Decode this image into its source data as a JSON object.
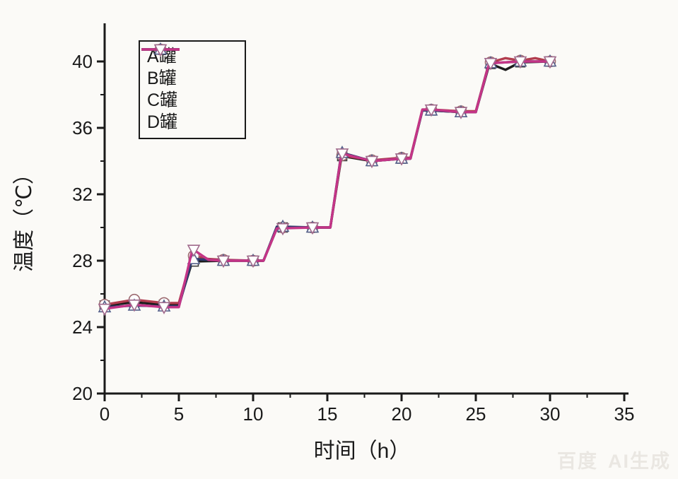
{
  "watermark": {
    "brand": "百度",
    "label": "AI生成"
  },
  "chart_data": {
    "type": "line",
    "title": "",
    "xlabel": "时间（h）",
    "ylabel": "温度（℃）",
    "xlim": [
      0,
      35.3
    ],
    "ylim": [
      20,
      42.3
    ],
    "x_ticks": [
      0,
      5,
      10,
      15,
      20,
      25,
      30,
      35
    ],
    "x_minor_ticks": [
      2.5,
      7.5,
      12.5,
      17.5,
      22.5,
      27.5,
      32.5
    ],
    "y_ticks": [
      20,
      24,
      28,
      32,
      36,
      40
    ],
    "y_minor_ticks": [
      22,
      26,
      30,
      34,
      38
    ],
    "grid": "off",
    "legend_position": "top-left",
    "axis_color": "#1a1a1a",
    "series": [
      {
        "name": "A罐",
        "color": "#1c1c1c",
        "marker": "square",
        "marker_stroke": "#3a3a3a",
        "line": [
          [
            0,
            25.3
          ],
          [
            2,
            25.5
          ],
          [
            4,
            25.35
          ],
          [
            5,
            25.35
          ],
          [
            5.9,
            27.95
          ],
          [
            8,
            28.0
          ],
          [
            10,
            28.0
          ],
          [
            10.7,
            28.0
          ],
          [
            11.6,
            29.95
          ],
          [
            12,
            30.0
          ],
          [
            14,
            30.0
          ],
          [
            15.2,
            30.0
          ],
          [
            15.95,
            34.25
          ],
          [
            16,
            34.3
          ],
          [
            18,
            34.0
          ],
          [
            20,
            34.15
          ],
          [
            20.6,
            34.15
          ],
          [
            21.4,
            37.05
          ],
          [
            22,
            37.05
          ],
          [
            24,
            36.95
          ],
          [
            25,
            36.95
          ],
          [
            25.9,
            39.8
          ],
          [
            26,
            39.85
          ],
          [
            27,
            39.5
          ],
          [
            28,
            39.95
          ],
          [
            30,
            40.0
          ]
        ],
        "markers": [
          [
            0,
            25.3
          ],
          [
            2,
            25.5
          ],
          [
            4,
            25.35
          ],
          [
            6,
            27.95
          ],
          [
            8,
            28.0
          ],
          [
            10,
            28.0
          ],
          [
            12,
            30.0
          ],
          [
            14,
            30.0
          ],
          [
            16,
            34.3
          ],
          [
            18,
            34.0
          ],
          [
            20,
            34.15
          ],
          [
            22,
            37.05
          ],
          [
            24,
            36.95
          ],
          [
            26,
            39.85
          ],
          [
            28,
            39.95
          ],
          [
            30,
            40.0
          ]
        ]
      },
      {
        "name": "B罐",
        "color": "#b23c4e",
        "marker": "circle",
        "marker_stroke": "#9c6a70",
        "line": [
          [
            0,
            25.35
          ],
          [
            2,
            25.65
          ],
          [
            4,
            25.45
          ],
          [
            5,
            25.45
          ],
          [
            5.9,
            28.3
          ],
          [
            6,
            28.3
          ],
          [
            7,
            28.1
          ],
          [
            8,
            28.05
          ],
          [
            10,
            28.0
          ],
          [
            10.7,
            28.0
          ],
          [
            11.6,
            30.0
          ],
          [
            12,
            30.0
          ],
          [
            14,
            30.0
          ],
          [
            15.2,
            30.0
          ],
          [
            15.95,
            34.35
          ],
          [
            16,
            34.35
          ],
          [
            18,
            34.05
          ],
          [
            20,
            34.2
          ],
          [
            20.6,
            34.2
          ],
          [
            21.4,
            37.1
          ],
          [
            22,
            37.1
          ],
          [
            24,
            37.0
          ],
          [
            25,
            37.0
          ],
          [
            25.9,
            39.95
          ],
          [
            26,
            39.95
          ],
          [
            27,
            40.2
          ],
          [
            28,
            40.05
          ],
          [
            29,
            40.2
          ],
          [
            30,
            40.0
          ]
        ],
        "markers": [
          [
            0,
            25.35
          ],
          [
            2,
            25.65
          ],
          [
            4,
            25.45
          ],
          [
            6,
            28.3
          ],
          [
            8,
            28.05
          ],
          [
            10,
            28.0
          ],
          [
            12,
            30.0
          ],
          [
            14,
            30.0
          ],
          [
            16,
            34.35
          ],
          [
            18,
            34.05
          ],
          [
            20,
            34.2
          ],
          [
            22,
            37.1
          ],
          [
            24,
            37.0
          ],
          [
            26,
            39.95
          ],
          [
            28,
            40.05
          ],
          [
            30,
            40.0
          ]
        ]
      },
      {
        "name": "C罐",
        "color": "#2e3a6e",
        "marker": "triangle-up",
        "marker_stroke": "#55608a",
        "line": [
          [
            0,
            25.2
          ],
          [
            2,
            25.3
          ],
          [
            4,
            25.25
          ],
          [
            5,
            25.25
          ],
          [
            5.9,
            28.1
          ],
          [
            6,
            28.1
          ],
          [
            8,
            28.0
          ],
          [
            10,
            28.0
          ],
          [
            10.7,
            28.0
          ],
          [
            11.6,
            30.05
          ],
          [
            12,
            30.05
          ],
          [
            14,
            30.0
          ],
          [
            15.2,
            30.0
          ],
          [
            15.95,
            34.5
          ],
          [
            16,
            34.5
          ],
          [
            18,
            34.0
          ],
          [
            20,
            34.15
          ],
          [
            20.6,
            34.15
          ],
          [
            21.4,
            37.05
          ],
          [
            22,
            37.05
          ],
          [
            24,
            36.95
          ],
          [
            25,
            36.95
          ],
          [
            25.9,
            39.9
          ],
          [
            26,
            39.9
          ],
          [
            28,
            40.0
          ],
          [
            30,
            40.0
          ]
        ],
        "markers": [
          [
            0,
            25.2
          ],
          [
            2,
            25.3
          ],
          [
            4,
            25.25
          ],
          [
            6,
            28.1
          ],
          [
            8,
            28.0
          ],
          [
            10,
            28.0
          ],
          [
            12,
            30.05
          ],
          [
            14,
            30.0
          ],
          [
            16,
            34.5
          ],
          [
            18,
            34.0
          ],
          [
            20,
            34.15
          ],
          [
            22,
            37.05
          ],
          [
            24,
            36.95
          ],
          [
            26,
            39.9
          ],
          [
            28,
            40.0
          ],
          [
            30,
            40.0
          ]
        ]
      },
      {
        "name": "D罐",
        "color": "#c43587",
        "marker": "triangle-down",
        "marker_stroke": "#a06a8c",
        "line": [
          [
            0,
            25.1
          ],
          [
            2,
            25.35
          ],
          [
            4,
            25.2
          ],
          [
            5,
            25.2
          ],
          [
            5.9,
            28.65
          ],
          [
            6,
            28.65
          ],
          [
            7,
            28.05
          ],
          [
            8,
            28.0
          ],
          [
            10,
            28.0
          ],
          [
            10.7,
            28.0
          ],
          [
            11.6,
            29.95
          ],
          [
            12,
            29.95
          ],
          [
            14,
            30.0
          ],
          [
            15.2,
            30.0
          ],
          [
            15.95,
            34.45
          ],
          [
            16,
            34.45
          ],
          [
            18,
            34.0
          ],
          [
            20,
            34.15
          ],
          [
            20.6,
            34.15
          ],
          [
            21.4,
            37.1
          ],
          [
            22,
            37.1
          ],
          [
            24,
            36.95
          ],
          [
            25,
            36.95
          ],
          [
            25.9,
            39.9
          ],
          [
            26,
            39.9
          ],
          [
            28,
            40.0
          ],
          [
            30,
            40.0
          ]
        ],
        "markers": [
          [
            0,
            25.1
          ],
          [
            2,
            25.35
          ],
          [
            4,
            25.2
          ],
          [
            6,
            28.65
          ],
          [
            8,
            28.0
          ],
          [
            10,
            28.0
          ],
          [
            12,
            29.95
          ],
          [
            14,
            30.0
          ],
          [
            16,
            34.45
          ],
          [
            18,
            34.0
          ],
          [
            20,
            34.15
          ],
          [
            22,
            37.1
          ],
          [
            24,
            36.95
          ],
          [
            26,
            39.9
          ],
          [
            28,
            40.0
          ],
          [
            30,
            40.0
          ]
        ]
      }
    ]
  }
}
